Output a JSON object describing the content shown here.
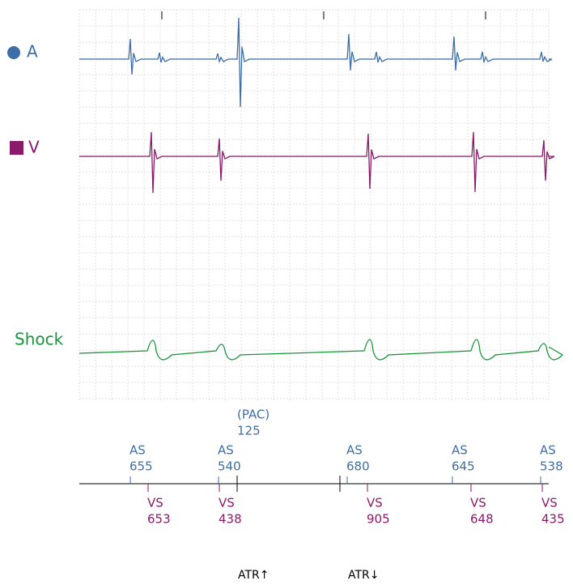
{
  "channels": [
    {
      "label": "A"
    },
    {
      "label": "V"
    },
    {
      "label": "Shock"
    }
  ],
  "pac": {
    "label": "(PAC)",
    "interval": 125
  },
  "atrial_markers": [
    {
      "label": "AS",
      "interval": 655
    },
    {
      "label": "AS",
      "interval": 540
    },
    {
      "label": "AS",
      "interval": 680
    },
    {
      "label": "AS",
      "interval": 645
    },
    {
      "label": "AS",
      "interval": 538
    }
  ],
  "ventricular_markers": [
    {
      "label": "VS",
      "interval": 653
    },
    {
      "label": "VS",
      "interval": 438
    },
    {
      "label": "VS",
      "interval": 905
    },
    {
      "label": "VS",
      "interval": 648
    },
    {
      "label": "VS",
      "interval": 435
    }
  ],
  "events": [
    "ATR↑",
    "ATR↓"
  ]
}
